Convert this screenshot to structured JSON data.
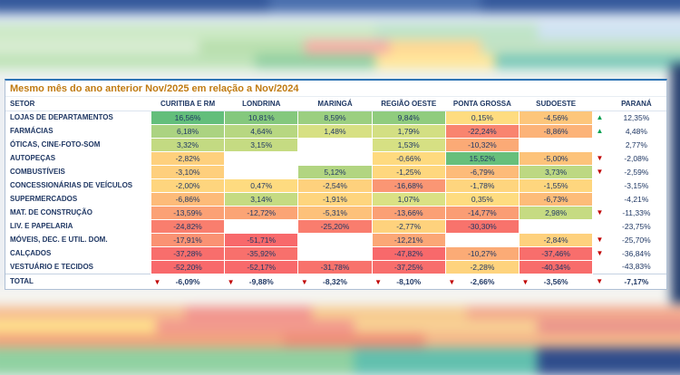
{
  "title": "Mesmo mês do ano anterior Nov/2025 em relação a Nov/2024",
  "colors": {
    "up_arrow": "#00a050",
    "down_arrow": "#c00000",
    "header_text": "#1f3864",
    "title_text": "#c07b12"
  },
  "arrows": {
    "up": "▲",
    "down": "▼"
  },
  "table": {
    "sector_header": "SETOR",
    "columns": [
      "CURITIBA E RM",
      "LONDRINA",
      "MARINGÁ",
      "REGIÃO OESTE",
      "PONTA GROSSA",
      "SUDOESTE",
      "PARANÁ"
    ],
    "rows": [
      {
        "sector": "LOJAS DE DEPARTAMENTOS",
        "cells": [
          {
            "v": "16,56%",
            "c": "#63be7b"
          },
          {
            "v": "10,81%",
            "c": "#84c87d"
          },
          {
            "v": "8,59%",
            "c": "#9bcf80"
          },
          {
            "v": "9,84%",
            "c": "#90cc7e"
          },
          {
            "v": "0,15%",
            "c": "#fedc80"
          },
          {
            "v": "-4,56%",
            "c": "#fdc67b"
          }
        ],
        "arrow": "up",
        "parana": "12,35%"
      },
      {
        "sector": "FARMÁCIAS",
        "cells": [
          {
            "v": "6,18%",
            "c": "#abd381"
          },
          {
            "v": "4,64%",
            "c": "#b7d781"
          },
          {
            "v": "1,48%",
            "c": "#d7e083"
          },
          {
            "v": "1,79%",
            "c": "#d3df83"
          },
          {
            "v": "-22,24%",
            "c": "#f9846f"
          },
          {
            "v": "-8,86%",
            "c": "#fcb378"
          }
        ],
        "arrow": "up",
        "parana": "4,48%"
      },
      {
        "sector": "ÓTICAS, CINE-FOTO-SOM",
        "cells": [
          {
            "v": "3,32%",
            "c": "#c3da82"
          },
          {
            "v": "3,15%",
            "c": "#c5db82"
          },
          {
            "v": "",
            "c": ""
          },
          {
            "v": "1,53%",
            "c": "#d6e083"
          },
          {
            "v": "-10,32%",
            "c": "#fbaa76"
          },
          {
            "v": "",
            "c": ""
          }
        ],
        "arrow": "",
        "parana": "2,77%"
      },
      {
        "sector": "AUTOPEÇAS",
        "cells": [
          {
            "v": "-2,82%",
            "c": "#fed07d"
          },
          {
            "v": "",
            "c": ""
          },
          {
            "v": "",
            "c": ""
          },
          {
            "v": "-0,66%",
            "c": "#feda7f"
          },
          {
            "v": "15,52%",
            "c": "#67bf7b"
          },
          {
            "v": "-5,00%",
            "c": "#fdc37a"
          }
        ],
        "arrow": "down",
        "parana": "-2,08%"
      },
      {
        "sector": "COMBUSTÍVEIS",
        "cells": [
          {
            "v": "-3,10%",
            "c": "#fecf7d"
          },
          {
            "v": "",
            "c": ""
          },
          {
            "v": "5,12%",
            "c": "#b2d581"
          },
          {
            "v": "-1,25%",
            "c": "#fed77e"
          },
          {
            "v": "-6,79%",
            "c": "#fdbb79"
          },
          {
            "v": "3,73%",
            "c": "#bdd882"
          }
        ],
        "arrow": "down",
        "parana": "-2,59%"
      },
      {
        "sector": "CONCESSIONÁRIAS DE VEÍCULOS",
        "cells": [
          {
            "v": "-2,00%",
            "c": "#fed57e"
          },
          {
            "v": "0,47%",
            "c": "#fedb80"
          },
          {
            "v": "-2,54%",
            "c": "#fed17d"
          },
          {
            "v": "-16,68%",
            "c": "#fa9674"
          },
          {
            "v": "-1,78%",
            "c": "#fed57e"
          },
          {
            "v": "-1,55%",
            "c": "#fed67e"
          }
        ],
        "arrow": "",
        "parana": "-3,15%"
      },
      {
        "sector": "SUPERMERCADOS",
        "cells": [
          {
            "v": "-6,86%",
            "c": "#fdbb79"
          },
          {
            "v": "3,14%",
            "c": "#c5db82"
          },
          {
            "v": "-1,91%",
            "c": "#fed57e"
          },
          {
            "v": "1,07%",
            "c": "#dae184"
          },
          {
            "v": "0,35%",
            "c": "#fedc80"
          },
          {
            "v": "-6,73%",
            "c": "#fdbc79"
          }
        ],
        "arrow": "",
        "parana": "-4,21%"
      },
      {
        "sector": "MAT. DE CONSTRUÇÃO",
        "cells": [
          {
            "v": "-13,59%",
            "c": "#fba175"
          },
          {
            "v": "-12,72%",
            "c": "#fba475"
          },
          {
            "v": "-5,31%",
            "c": "#fdc17a"
          },
          {
            "v": "-13,66%",
            "c": "#fba075"
          },
          {
            "v": "-14,77%",
            "c": "#fa9d74"
          },
          {
            "v": "2,98%",
            "c": "#c6db82"
          }
        ],
        "arrow": "down",
        "parana": "-11,33%"
      },
      {
        "sector": "LIV. E PAPELARIA",
        "cells": [
          {
            "v": "-24,82%",
            "c": "#f97e6e"
          },
          {
            "v": "",
            "c": ""
          },
          {
            "v": "-25,20%",
            "c": "#f97d6e"
          },
          {
            "v": "-2,77%",
            "c": "#fed27d"
          },
          {
            "v": "-30,30%",
            "c": "#f8736c"
          },
          {
            "v": "",
            "c": ""
          }
        ],
        "arrow": "",
        "parana": "-23,75%"
      },
      {
        "sector": "MÓVEIS, DEC. E UTIL. DOM.",
        "cells": [
          {
            "v": "-17,91%",
            "c": "#fa9273"
          },
          {
            "v": "-51,71%",
            "c": "#f8696b"
          },
          {
            "v": "",
            "c": ""
          },
          {
            "v": "-12,21%",
            "c": "#fba776"
          },
          {
            "v": "",
            "c": ""
          },
          {
            "v": "-2,84%",
            "c": "#fed17d"
          }
        ],
        "arrow": "down",
        "parana": "-25,70%"
      },
      {
        "sector": "CALÇADOS",
        "cells": [
          {
            "v": "-37,28%",
            "c": "#f86e6c"
          },
          {
            "v": "-35,92%",
            "c": "#f8706c"
          },
          {
            "v": "",
            "c": ""
          },
          {
            "v": "-47,82%",
            "c": "#f8696b"
          },
          {
            "v": "-10,27%",
            "c": "#fbab76"
          },
          {
            "v": "-37,46%",
            "c": "#f86e6c"
          }
        ],
        "arrow": "down",
        "parana": "-36,84%"
      },
      {
        "sector": "VESTUÁRIO E TECIDOS",
        "cells": [
          {
            "v": "-52,20%",
            "c": "#f8696b"
          },
          {
            "v": "-52,17%",
            "c": "#f8696b"
          },
          {
            "v": "-31,78%",
            "c": "#f8726c"
          },
          {
            "v": "-37,25%",
            "c": "#f86e6c"
          },
          {
            "v": "-2,28%",
            "c": "#fed37d"
          },
          {
            "v": "-40,34%",
            "c": "#f86c6b"
          }
        ],
        "arrow": "",
        "parana": "-43,83%"
      }
    ],
    "total": {
      "label": "TOTAL",
      "values": [
        "-6,09%",
        "-9,88%",
        "-8,32%",
        "-8,10%",
        "-2,66%",
        "-3,56%"
      ],
      "arrow": "down",
      "parana": "-7,17%"
    }
  }
}
